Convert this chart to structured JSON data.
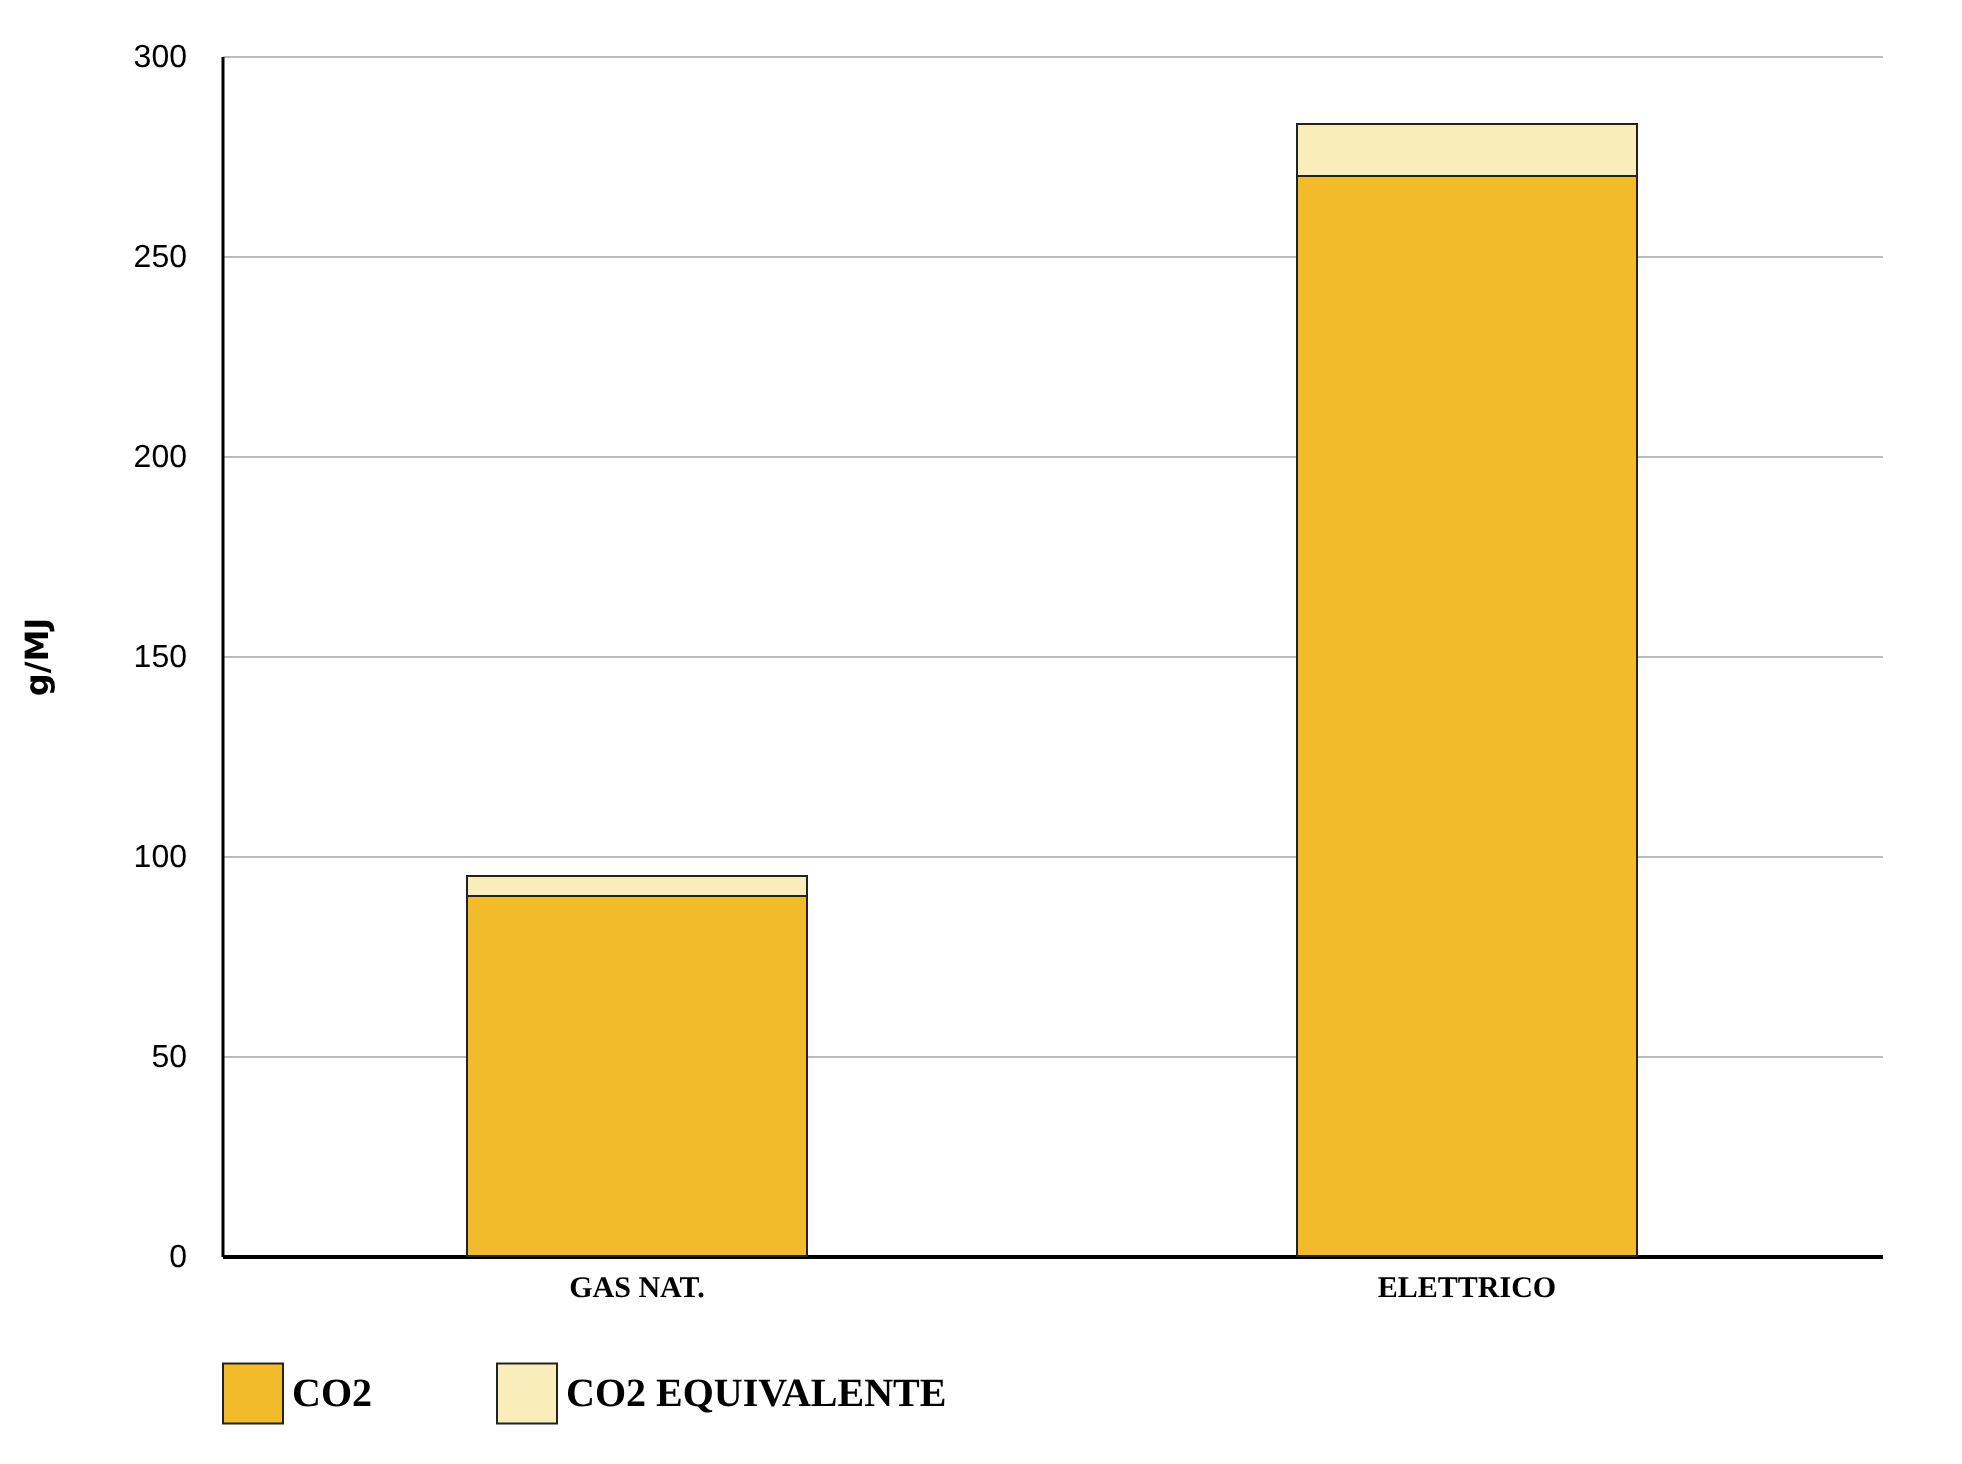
{
  "chart_data": {
    "type": "bar",
    "stacked": true,
    "ylabel": "g/MJ",
    "categories": [
      "GAS NAT.",
      "ELETTRICO"
    ],
    "series": [
      {
        "name": "CO2",
        "color": "#f2bb2c",
        "values": [
          90,
          270
        ]
      },
      {
        "name": "CO2 EQUIVALENTE",
        "color": "#f8edbb",
        "values": [
          5,
          13
        ]
      }
    ],
    "ylim": [
      0,
      300
    ],
    "yticks": [
      0,
      50,
      100,
      150,
      200,
      250,
      300
    ],
    "grid": "y",
    "legend": "bottom"
  }
}
